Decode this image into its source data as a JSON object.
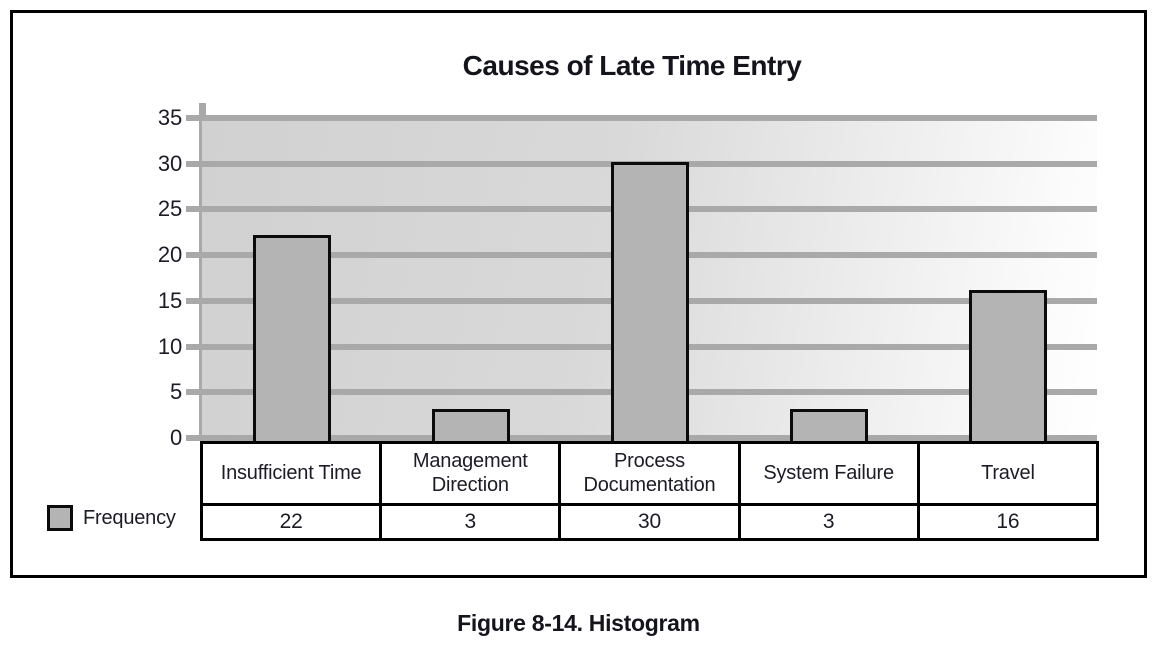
{
  "figure": {
    "caption": "Figure 8-14. Histogram"
  },
  "chart_data": {
    "type": "bar",
    "title": "Causes of Late Time Entry",
    "categories": [
      "Insufficient Time",
      "Management Direction",
      "Process Documentation",
      "System Failure",
      "Travel"
    ],
    "series": [
      {
        "name": "Frequency",
        "values": [
          22,
          3,
          30,
          3,
          16
        ]
      }
    ],
    "xlabel": "",
    "ylabel": "",
    "ylim": [
      0,
      35
    ],
    "yticks": [
      0,
      5,
      10,
      15,
      20,
      25,
      30,
      35
    ],
    "grid": true,
    "legend_position": "bottom-left",
    "colors": {
      "bar_fill": "#b4b4b4",
      "bar_border": "#0b0b0b",
      "gridline": "#a9a9a9",
      "plot_bg_start": "#d1d1d1",
      "plot_bg_end": "#ffffff",
      "text": "#1c1c26"
    }
  }
}
